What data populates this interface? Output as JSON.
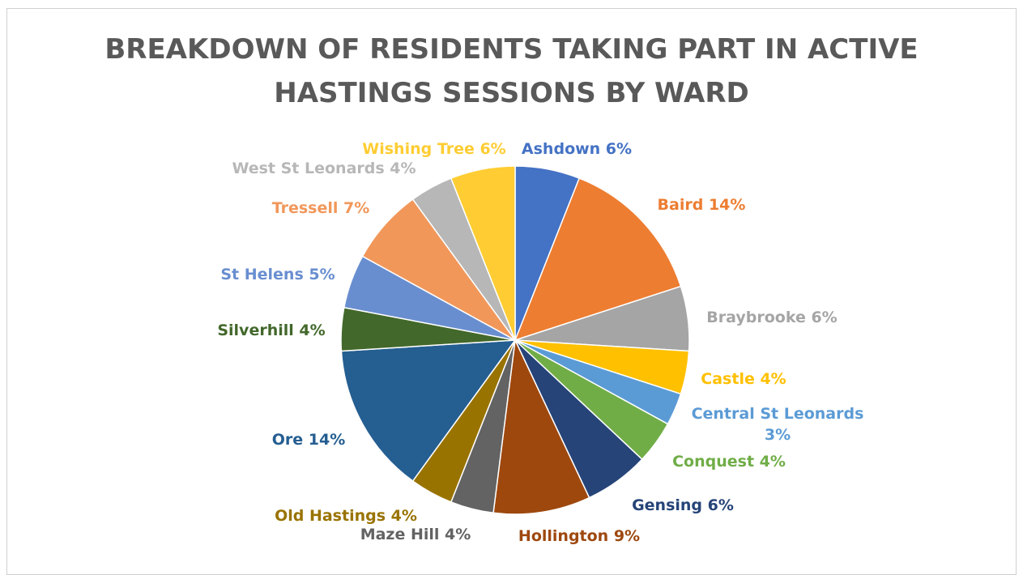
{
  "chart_data": {
    "type": "pie",
    "title_lines": [
      "BREAKDOWN OF RESIDENTS TAKING PART IN ACTIVE",
      "HASTINGS SESSIONS BY WARD"
    ],
    "slices": [
      {
        "name": "Ashdown",
        "value": 6,
        "label": "Ashdown 6%",
        "color": "#4472C4"
      },
      {
        "name": "Baird",
        "value": 14,
        "label": "Baird 14%",
        "color": "#ED7D31"
      },
      {
        "name": "Braybrooke",
        "value": 6,
        "label": "Braybrooke 6%",
        "color": "#A5A5A5"
      },
      {
        "name": "Castle",
        "value": 4,
        "label": "Castle 4%",
        "color": "#FFC000"
      },
      {
        "name": "Central St Leonards",
        "value": 3,
        "label": "Central St Leonards 3%",
        "color": "#5B9BD5"
      },
      {
        "name": "Conquest",
        "value": 4,
        "label": "Conquest 4%",
        "color": "#70AD47"
      },
      {
        "name": "Gensing",
        "value": 6,
        "label": "Gensing 6%",
        "color": "#264478"
      },
      {
        "name": "Hollington",
        "value": 9,
        "label": "Hollington 9%",
        "color": "#9E480E"
      },
      {
        "name": "Maze Hill",
        "value": 4,
        "label": "Maze Hill 4%",
        "color": "#636363"
      },
      {
        "name": "Old Hastings",
        "value": 4,
        "label": "Old Hastings 4%",
        "color": "#997300"
      },
      {
        "name": "Ore",
        "value": 14,
        "label": "Ore 14%",
        "color": "#255E91"
      },
      {
        "name": "Silverhill",
        "value": 4,
        "label": "Silverhill 4%",
        "color": "#43682B"
      },
      {
        "name": "St Helens",
        "value": 5,
        "label": "St Helens 5%",
        "color": "#698ED0"
      },
      {
        "name": "Tressell",
        "value": 7,
        "label": "Tressell 7%",
        "color": "#F1975A"
      },
      {
        "name": "West St Leonards",
        "value": 4,
        "label": "West St Leonards 4%",
        "color": "#B7B7B7"
      },
      {
        "name": "Wishing Tree",
        "value": 6,
        "label": "Wishing Tree 6%",
        "color": "#FFCD33"
      }
    ]
  }
}
